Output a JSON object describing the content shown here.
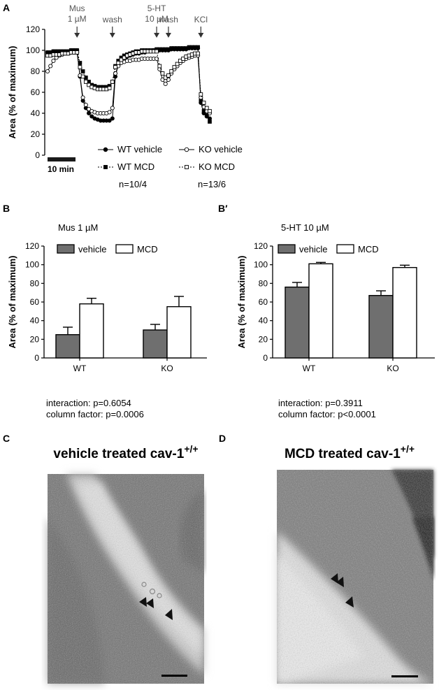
{
  "panels": {
    "a": "A",
    "b": "B",
    "bprime": "B′",
    "c": "C",
    "d": "D"
  },
  "chart_data": [
    {
      "panel": "A",
      "type": "line",
      "ylabel": "Area (% of maximum)",
      "ylim": [
        0,
        120
      ],
      "yticks": [
        "0",
        "20",
        "40",
        "60",
        "80",
        "100",
        "120"
      ],
      "scale_bar_label": "10 min",
      "events": [
        {
          "label": "Mus\n1 µM",
          "x": 10
        },
        {
          "label": "wash",
          "x": 22
        },
        {
          "label": "5-HT\n10 µM",
          "x": 37
        },
        {
          "label": "wash",
          "x": 41
        },
        {
          "label": "KCl",
          "x": 52
        }
      ],
      "x": [
        0,
        1,
        2,
        3,
        4,
        5,
        6,
        7,
        8,
        9,
        10,
        11,
        12,
        13,
        14,
        15,
        16,
        17,
        18,
        19,
        20,
        21,
        22,
        23,
        24,
        25,
        26,
        27,
        28,
        29,
        30,
        31,
        32,
        33,
        34,
        35,
        36,
        37,
        38,
        39,
        40,
        41,
        42,
        43,
        44,
        45,
        46,
        47,
        48,
        49,
        50,
        51,
        52,
        53,
        54,
        55
      ],
      "series": [
        {
          "name": "WT vehicle",
          "marker": "filled-circle",
          "line": "solid",
          "values": [
            98,
            98,
            99,
            99,
            99,
            99,
            99,
            99,
            100,
            100,
            100,
            75,
            52,
            45,
            40,
            37,
            35,
            34,
            33,
            33,
            33,
            33,
            35,
            75,
            86,
            90,
            92,
            94,
            95,
            96,
            97,
            97,
            98,
            98,
            99,
            99,
            100,
            100,
            100,
            100,
            100,
            100,
            101,
            101,
            101,
            101,
            101,
            101,
            102,
            102,
            102,
            102,
            50,
            40,
            37,
            35
          ]
        },
        {
          "name": "WT MCD",
          "marker": "filled-square",
          "line": "dotted",
          "values": [
            98,
            98,
            99,
            99,
            99,
            99,
            99,
            99,
            100,
            100,
            100,
            88,
            80,
            74,
            70,
            67,
            66,
            65,
            65,
            65,
            65,
            66,
            70,
            85,
            90,
            93,
            95,
            96,
            97,
            98,
            99,
            99,
            100,
            100,
            100,
            100,
            100,
            101,
            101,
            101,
            101,
            101,
            102,
            102,
            102,
            102,
            102,
            102,
            103,
            103,
            103,
            103,
            52,
            42,
            38,
            32
          ]
        },
        {
          "name": "KO vehicle",
          "marker": "open-circle",
          "line": "solid",
          "values": [
            80,
            85,
            90,
            93,
            95,
            96,
            97,
            97,
            98,
            98,
            98,
            76,
            55,
            48,
            44,
            42,
            41,
            40,
            40,
            40,
            40,
            41,
            45,
            78,
            85,
            88,
            89,
            90,
            90,
            91,
            91,
            91,
            92,
            92,
            92,
            92,
            92,
            92,
            82,
            72,
            68,
            72,
            78,
            82,
            85,
            88,
            90,
            92,
            93,
            94,
            95,
            95,
            55,
            46,
            42,
            40
          ]
        },
        {
          "name": "KO MCD",
          "marker": "open-square",
          "line": "dotted",
          "values": [
            95,
            95,
            96,
            96,
            96,
            97,
            97,
            97,
            98,
            98,
            98,
            84,
            75,
            70,
            67,
            65,
            64,
            63,
            63,
            63,
            63,
            64,
            70,
            84,
            88,
            91,
            93,
            95,
            96,
            97,
            98,
            98,
            99,
            99,
            99,
            99,
            99,
            99,
            85,
            78,
            74,
            76,
            80,
            84,
            87,
            90,
            92,
            94,
            95,
            96,
            97,
            97,
            58,
            50,
            45,
            42
          ]
        }
      ],
      "legend_notes": [
        "n=10/4",
        "n=13/6"
      ]
    },
    {
      "panel": "B",
      "type": "bar",
      "title": "Mus 1 µM",
      "ylabel": "Area (% of maximum)",
      "ylim": [
        0,
        120
      ],
      "yticks": [
        "0",
        "20",
        "40",
        "60",
        "80",
        "100",
        "120"
      ],
      "categories": [
        "WT",
        "KO"
      ],
      "series": [
        {
          "name": "vehicle",
          "color": "#6f6f6f",
          "values": [
            25,
            30
          ],
          "errors": [
            8,
            6
          ]
        },
        {
          "name": "MCD",
          "color": "#ffffff",
          "values": [
            58,
            55
          ],
          "errors": [
            6,
            11
          ]
        }
      ],
      "stats": [
        "interaction: p=0.6054",
        "column factor: p=0.0006"
      ]
    },
    {
      "panel": "B′",
      "type": "bar",
      "title": "5-HT 10 µM",
      "ylabel": "Area (% of maximum)",
      "ylim": [
        0,
        120
      ],
      "yticks": [
        "0",
        "20",
        "40",
        "60",
        "80",
        "100",
        "120"
      ],
      "categories": [
        "WT",
        "KO"
      ],
      "series": [
        {
          "name": "vehicle",
          "color": "#6f6f6f",
          "values": [
            76,
            67
          ],
          "errors": [
            5,
            5
          ]
        },
        {
          "name": "MCD",
          "color": "#ffffff",
          "values": [
            101,
            97
          ],
          "errors": [
            1.5,
            2.5
          ]
        }
      ],
      "stats": [
        "interaction: p=0.3911",
        "column factor: p<0.0001"
      ]
    }
  ],
  "micrographs": {
    "c_title": "vehicle treated cav-1",
    "c_sup": "+/+",
    "d_title": "MCD treated cav-1",
    "d_sup": "+/+"
  }
}
